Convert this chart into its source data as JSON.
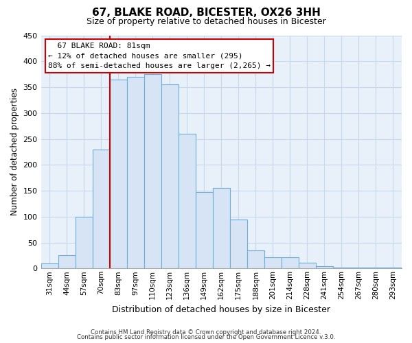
{
  "title": "67, BLAKE ROAD, BICESTER, OX26 3HH",
  "subtitle": "Size of property relative to detached houses in Bicester",
  "xlabel": "Distribution of detached houses by size in Bicester",
  "ylabel": "Number of detached properties",
  "footer_line1": "Contains HM Land Registry data © Crown copyright and database right 2024.",
  "footer_line2": "Contains public sector information licensed under the Open Government Licence v.3.0.",
  "categories": [
    "31sqm",
    "44sqm",
    "57sqm",
    "70sqm",
    "83sqm",
    "97sqm",
    "110sqm",
    "123sqm",
    "136sqm",
    "149sqm",
    "162sqm",
    "175sqm",
    "188sqm",
    "201sqm",
    "214sqm",
    "228sqm",
    "241sqm",
    "254sqm",
    "267sqm",
    "280sqm",
    "293sqm"
  ],
  "values": [
    10,
    25,
    100,
    230,
    365,
    370,
    375,
    355,
    260,
    148,
    155,
    95,
    35,
    22,
    22,
    11,
    4,
    2,
    2,
    2,
    2
  ],
  "bar_color": "#d6e4f5",
  "bar_edge_color": "#6baed6",
  "highlight_bar_edge_color": "#cc0000",
  "highlight_index": 4,
  "property_label": "67 BLAKE ROAD: 81sqm",
  "annotation_line1": "← 12% of detached houses are smaller (295)",
  "annotation_line2": "88% of semi-detached houses are larger (2,265) →",
  "annotation_box_color": "#ffffff",
  "annotation_box_edge": "#cc0000",
  "ylim": [
    0,
    450
  ],
  "yticks": [
    0,
    50,
    100,
    150,
    200,
    250,
    300,
    350,
    400,
    450
  ],
  "plot_bg_color": "#e8f0fa",
  "fig_bg_color": "#ffffff",
  "grid_color": "#c8d8ec"
}
